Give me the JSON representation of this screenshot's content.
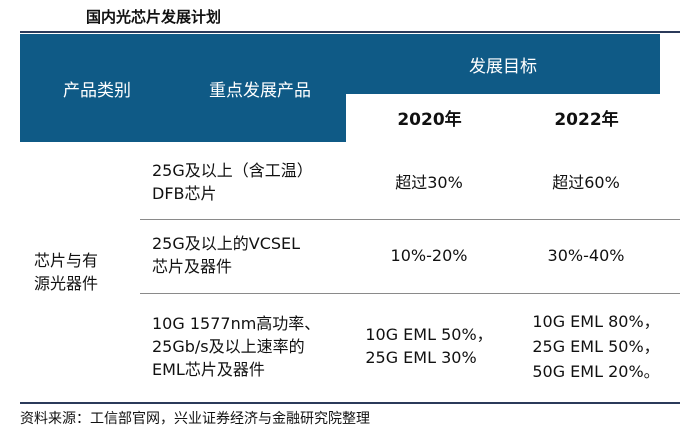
{
  "title": "国内光芯片发展计划",
  "table": {
    "headers": {
      "category": "产品类别",
      "product": "重点发展产品",
      "target": "发展目标",
      "year1": "2020年",
      "year2": "2022年"
    },
    "category": {
      "line1": "芯片与有",
      "line2": "源光器件"
    },
    "rows": [
      {
        "product": [
          "25G及以上（含工温）",
          "DFB芯片"
        ],
        "y2020": [
          "超过30%"
        ],
        "y2022": [
          "超过60%"
        ]
      },
      {
        "product": [
          "25G及以上的VCSEL",
          "芯片及器件"
        ],
        "y2020": [
          "10%-20%"
        ],
        "y2022": [
          "30%-40%"
        ]
      },
      {
        "product": [
          "10G 1577nm高功率、",
          "25Gb/s及以上速率的",
          "EML芯片及器件"
        ],
        "y2020": [
          "10G EML 50%，",
          "25G EML 30%"
        ],
        "y2022": [
          "10G EML 80%，",
          "25G EML 50%，",
          "50G EML 20%。"
        ]
      }
    ]
  },
  "source": "资料来源：工信部官网，兴业证券经济与金融研究院整理",
  "colors": {
    "header_bg": "#0f5a86",
    "rule": "#2b3a5a"
  }
}
